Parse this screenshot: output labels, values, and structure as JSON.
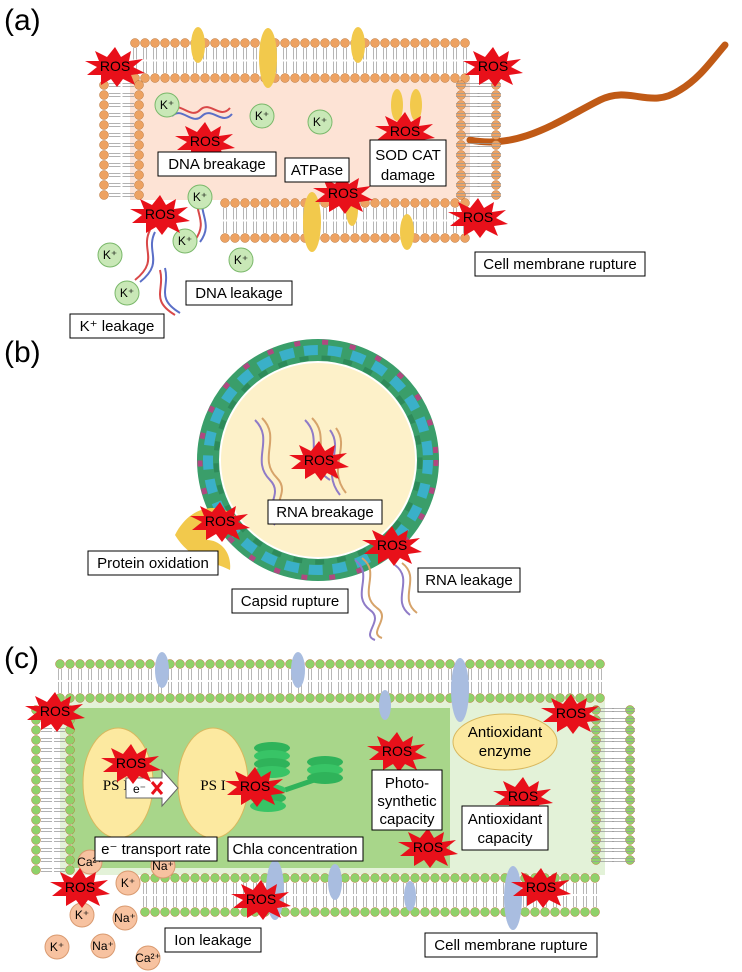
{
  "panels": {
    "a": {
      "label": "(a)",
      "ros": "ROS",
      "ion": "K⁺",
      "labels": {
        "dna_breakage": "DNA breakage",
        "atpase": "ATPase",
        "sod_cat_1": "SOD CAT",
        "sod_cat_2": "damage",
        "dna_leakage": "DNA leakage",
        "k_leakage": "K⁺ leakage",
        "membrane_rupture": "Cell membrane rupture"
      }
    },
    "b": {
      "label": "(b)",
      "ros": "ROS",
      "labels": {
        "rna_breakage": "RNA breakage",
        "protein_oxidation": "Protein oxidation",
        "capsid_rupture": "Capsid rupture",
        "rna_leakage": "RNA leakage"
      }
    },
    "c": {
      "label": "(c)",
      "ros": "ROS",
      "labels": {
        "ps2": "PS II",
        "ps1": "PS I",
        "electron": "e⁻",
        "transport_rate": "e⁻ transport rate",
        "chla": "Chla concentration",
        "photo_1": "Photo-",
        "photo_2": "synthetic",
        "photo_3": "capacity",
        "enzyme_1": "Antioxidant",
        "enzyme_2": "enzyme",
        "antiox_cap_1": "Antioxidant",
        "antiox_cap_2": "capacity",
        "ion_leakage": "Ion leakage",
        "membrane_rupture": "Cell membrane rupture"
      },
      "ions": {
        "ca": "Ca²⁺",
        "na": "Na⁺",
        "k": "K⁺"
      }
    }
  },
  "colors": {
    "ros_burst": "#e8101a",
    "lipid_a": "#eda262",
    "lipid_c": "#8fd16a",
    "protein": "#f2c94c",
    "protein_c": "#a9bde0",
    "cytoplasm_a": "#fde3d5",
    "cytoplasm_c": "#e3f2d8",
    "chloroplast": "#a8d68a",
    "flagellum": "#c05a16",
    "ion_k_a": "#c9e8b7",
    "ion_c": "#f7c2a0",
    "virus_core": "#fdf1c9"
  }
}
